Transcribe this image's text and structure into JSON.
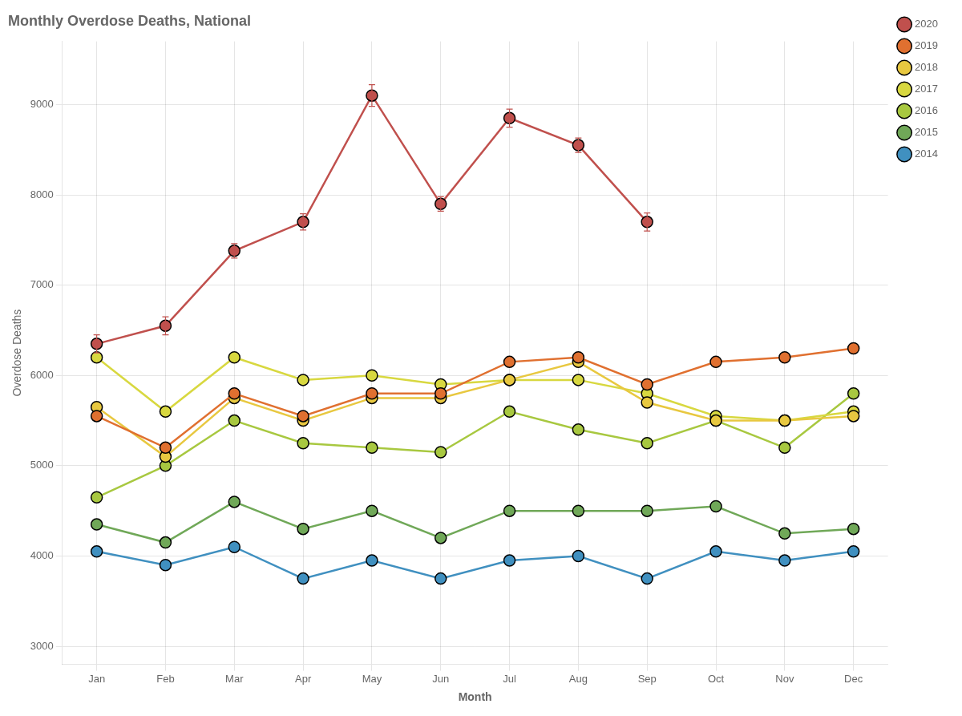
{
  "chart_data": {
    "type": "line",
    "title": "Monthly Overdose Deaths, National",
    "xlabel": "Month",
    "ylabel": "Overdose Deaths",
    "categories": [
      "Jan",
      "Feb",
      "Mar",
      "Apr",
      "May",
      "Jun",
      "Jul",
      "Aug",
      "Sep",
      "Oct",
      "Nov",
      "Dec"
    ],
    "series": [
      {
        "name": "2020",
        "color": "#c0504d",
        "values": [
          6350,
          6550,
          7380,
          7700,
          9100,
          7900,
          8850,
          8550,
          7700,
          null,
          null,
          null
        ],
        "errors": [
          100,
          100,
          80,
          90,
          120,
          80,
          100,
          80,
          100,
          null,
          null,
          null
        ]
      },
      {
        "name": "2019",
        "color": "#e07030",
        "values": [
          5550,
          5200,
          5800,
          5550,
          5800,
          5800,
          6150,
          6200,
          5900,
          6150,
          6200,
          6300
        ]
      },
      {
        "name": "2018",
        "color": "#e8c840",
        "values": [
          5650,
          5100,
          5750,
          5500,
          5750,
          5750,
          5950,
          6150,
          5700,
          5500,
          5500,
          5550
        ]
      },
      {
        "name": "2017",
        "color": "#d8d840",
        "values": [
          6200,
          5600,
          6200,
          5950,
          6000,
          5900,
          5950,
          5950,
          5800,
          5550,
          5500,
          5600
        ]
      },
      {
        "name": "2016",
        "color": "#a8c840",
        "values": [
          4650,
          5000,
          5500,
          5250,
          5200,
          5150,
          5600,
          5400,
          5250,
          5500,
          5200,
          5800
        ]
      },
      {
        "name": "2015",
        "color": "#70a858",
        "values": [
          4350,
          4150,
          4600,
          4300,
          4500,
          4200,
          4500,
          4500,
          4500,
          4550,
          4250,
          4300
        ]
      },
      {
        "name": "2014",
        "color": "#4090c0",
        "values": [
          4050,
          3900,
          4100,
          3750,
          3950,
          3750,
          3950,
          4000,
          3750,
          4050,
          3950,
          4050
        ]
      }
    ],
    "ylim": [
      2800,
      9700
    ],
    "yticks": [
      3000,
      4000,
      5000,
      6000,
      7000,
      8000,
      9000
    ],
    "grid": true,
    "legend": "upper right",
    "marker": "circle"
  }
}
